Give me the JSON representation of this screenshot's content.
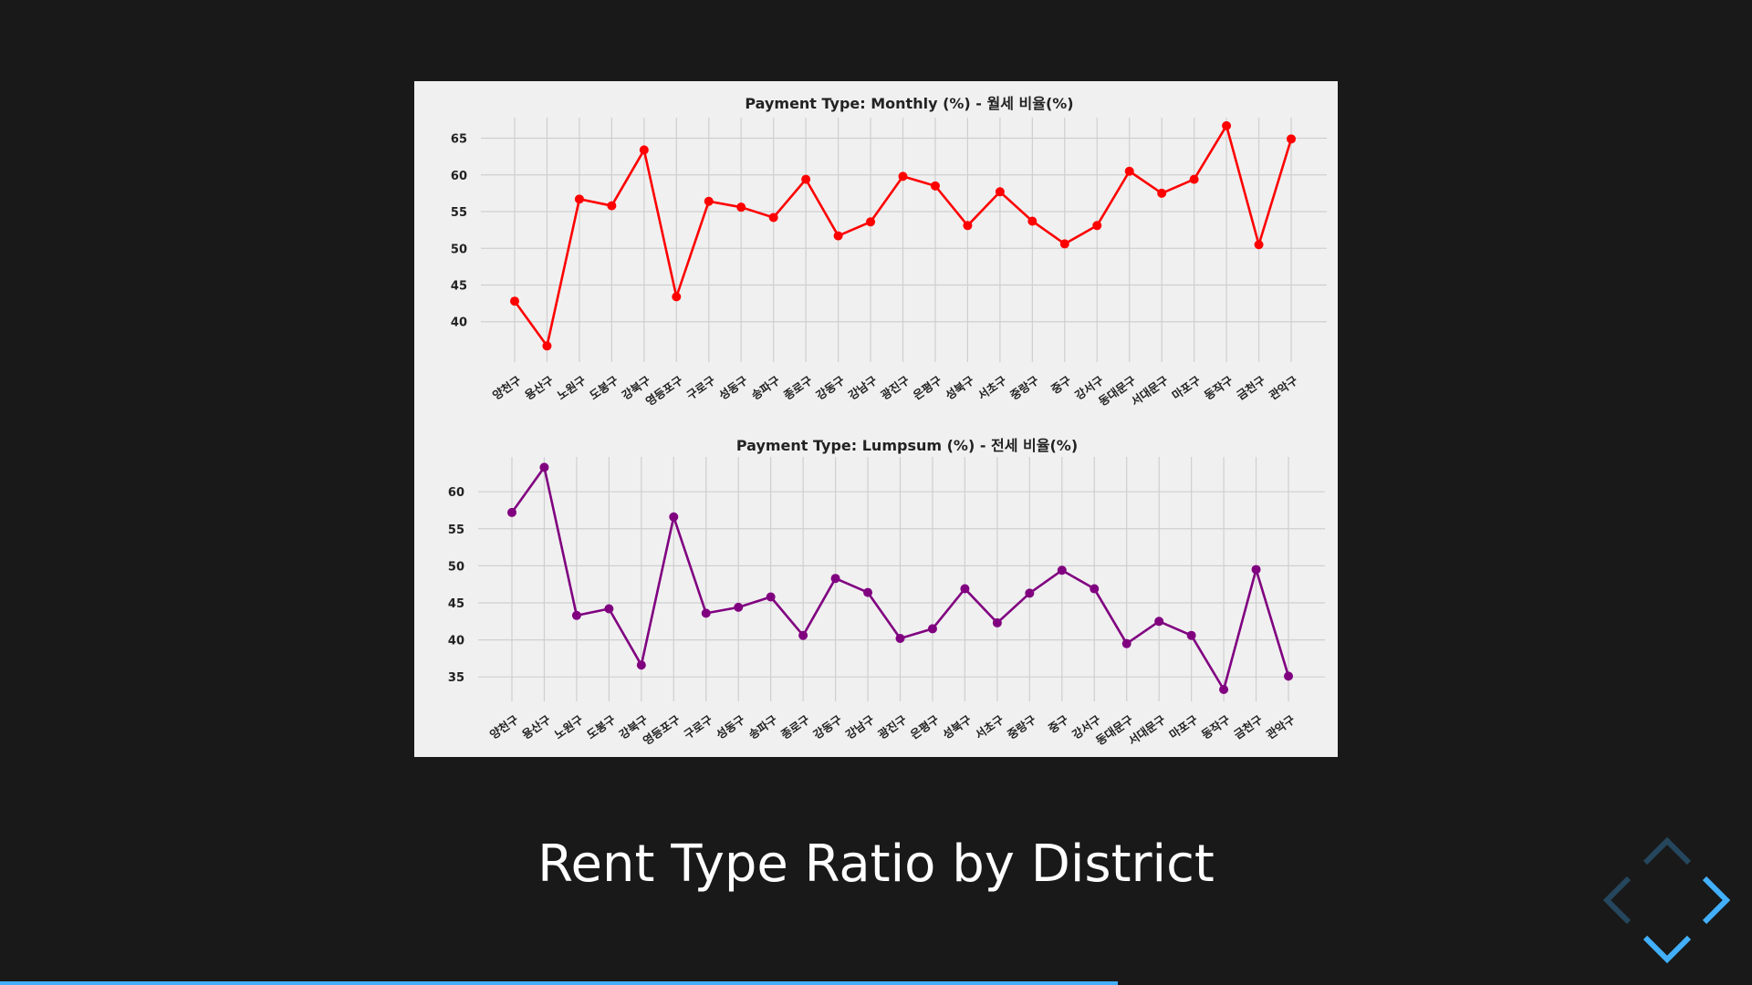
{
  "slide": {
    "title": "Rent Type Ratio by District",
    "progress": 0.638
  },
  "controls": {
    "up": {
      "enabled": false,
      "icon": "chevron-up-icon"
    },
    "down": {
      "enabled": true,
      "icon": "chevron-down-icon"
    },
    "left": {
      "enabled": false,
      "icon": "chevron-left-icon"
    },
    "right": {
      "enabled": true,
      "icon": "chevron-right-icon"
    },
    "accent": "#42affa"
  },
  "chart_data": [
    {
      "type": "line",
      "title": "Payment Type: Monthly (%) - 월세 비율(%)",
      "categories": [
        "양천구",
        "용산구",
        "노원구",
        "도봉구",
        "강북구",
        "영등포구",
        "구로구",
        "성동구",
        "송파구",
        "종로구",
        "강동구",
        "강남구",
        "광진구",
        "은평구",
        "성북구",
        "서초구",
        "중랑구",
        "중구",
        "강서구",
        "동대문구",
        "서대문구",
        "마포구",
        "동작구",
        "금천구",
        "관악구"
      ],
      "yticks": [
        40,
        45,
        50,
        55,
        60,
        65
      ],
      "ylim": [
        34.5,
        67.8
      ],
      "grid": true,
      "color": "#ff0000",
      "series": [
        {
          "values": [
            42.8,
            36.7,
            56.7,
            55.8,
            63.4,
            43.4,
            56.4,
            55.6,
            54.2,
            59.4,
            51.7,
            53.6,
            59.8,
            58.5,
            53.1,
            57.7,
            53.7,
            50.6,
            53.1,
            60.5,
            57.5,
            59.4,
            66.7,
            50.5,
            64.9
          ]
        }
      ]
    },
    {
      "type": "line",
      "title": "Payment Type: Lumpsum (%) - 전세 비율(%)",
      "categories": [
        "양천구",
        "용산구",
        "노원구",
        "도봉구",
        "강북구",
        "영등포구",
        "구로구",
        "성동구",
        "송파구",
        "종로구",
        "강동구",
        "강남구",
        "광진구",
        "은평구",
        "성북구",
        "서초구",
        "중랑구",
        "중구",
        "강서구",
        "동대문구",
        "서대문구",
        "마포구",
        "동작구",
        "금천구",
        "관악구"
      ],
      "yticks": [
        35,
        40,
        45,
        50,
        55,
        60
      ],
      "ylim": [
        31.7,
        64.7
      ],
      "grid": true,
      "color": "#800080",
      "series": [
        {
          "values": [
            57.2,
            63.3,
            43.3,
            44.2,
            36.6,
            56.6,
            43.6,
            44.4,
            45.8,
            40.6,
            48.3,
            46.4,
            40.2,
            41.5,
            46.9,
            42.3,
            46.3,
            49.4,
            46.9,
            39.5,
            42.5,
            40.6,
            33.3,
            49.5,
            35.1
          ]
        }
      ]
    }
  ]
}
